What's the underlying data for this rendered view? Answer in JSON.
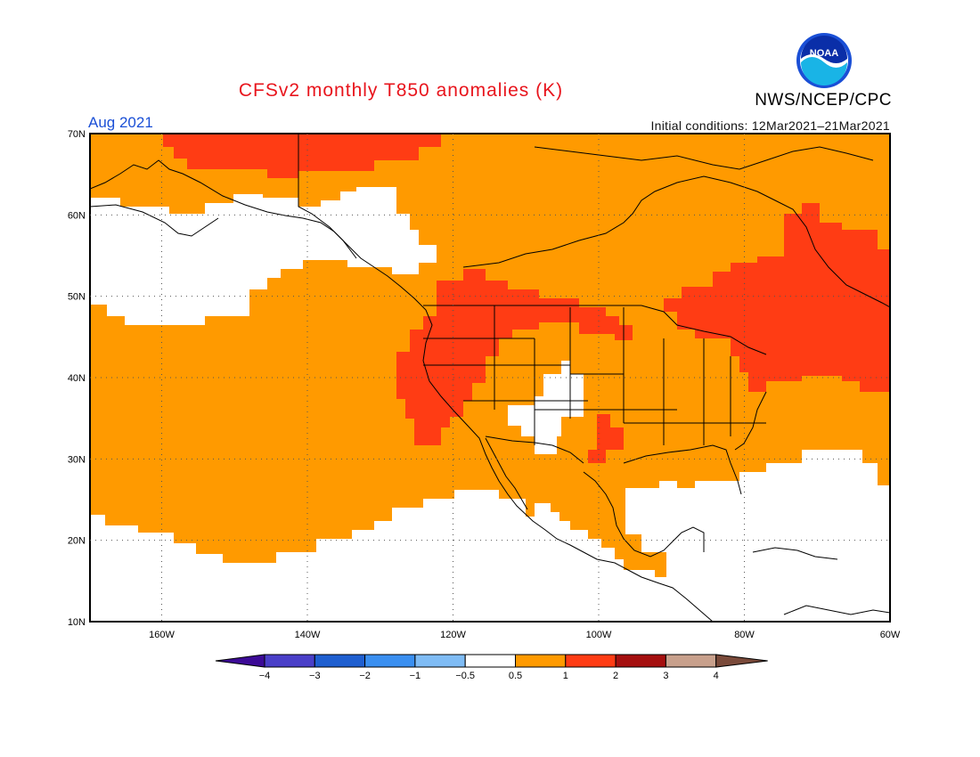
{
  "header": {
    "title": "CFSv2 monthly T850 anomalies (K)",
    "agency": "NWS/NCEP/CPC",
    "period": "Aug 2021",
    "initial_conditions": "Initial conditions: 12Mar2021–21Mar2021",
    "logo_text": "NOAA"
  },
  "axes": {
    "lat_labels": [
      "70N",
      "60N",
      "50N",
      "40N",
      "30N",
      "20N",
      "10N"
    ],
    "lon_labels": [
      "160W",
      "140W",
      "120W",
      "100W",
      "80W",
      "60W"
    ]
  },
  "colorbar": {
    "labels": [
      "−4",
      "−3",
      "−2",
      "−1",
      "−0.5",
      "0.5",
      "1",
      "2",
      "3",
      "4"
    ],
    "colors": [
      "#3c0a96",
      "#4a3fc8",
      "#1f5fd0",
      "#3a8ff0",
      "#7fbcf5",
      "#ffffff",
      "#ff9a00",
      "#ff3c14",
      "#a50f0f",
      "#c8a08c",
      "#7a4a3a"
    ]
  },
  "colors": {
    "white_band": "#ffffff",
    "orange_band": "#ff9a00",
    "red_band": "#ff3c14",
    "title_red": "#e8141c",
    "label_blue": "#1a4fd6"
  }
}
